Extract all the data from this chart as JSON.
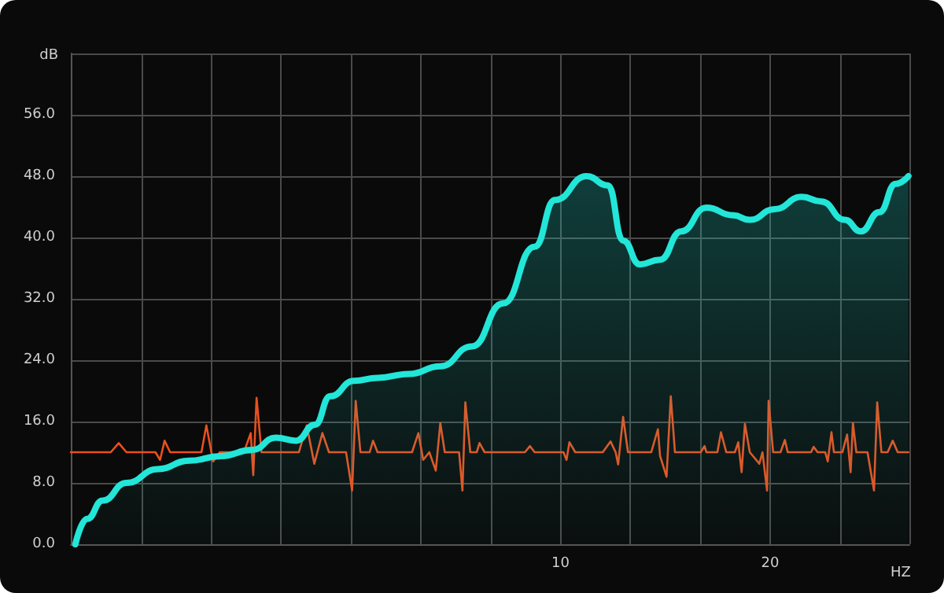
{
  "chart_data": {
    "type": "line",
    "ylabel": "dB",
    "xlabel": "HZ",
    "log": "x",
    "grid": true,
    "marker": "none",
    "line_style": "solid",
    "xlim": [
      1.98,
      31.7
    ],
    "xticks": [
      {
        "value": 1.98,
        "label": null
      },
      {
        "value": 2.5,
        "label": null
      },
      {
        "value": 3.15,
        "label": null
      },
      {
        "value": 3.97,
        "label": null
      },
      {
        "value": 5,
        "label": null
      },
      {
        "value": 6.3,
        "label": null
      },
      {
        "value": 7.94,
        "label": null
      },
      10,
      {
        "value": 12.6,
        "label": null
      },
      {
        "value": 15.9,
        "label": null
      },
      20,
      {
        "value": 25.2,
        "label": null
      },
      {
        "value": 31.7,
        "label": null
      }
    ],
    "ylim": [
      0,
      64
    ],
    "yticks": [
      {
        "value": 0,
        "label": "0.0"
      },
      {
        "value": 8,
        "label": "8.0"
      },
      {
        "value": 16,
        "label": "16.0"
      },
      {
        "value": 24,
        "label": "24.0"
      },
      {
        "value": 32,
        "label": "32.0"
      },
      {
        "value": 40,
        "label": "40.0"
      },
      {
        "value": 48,
        "label": "48.0"
      },
      {
        "value": 56,
        "label": "56.0"
      },
      {
        "value": 64,
        "label": null
      }
    ],
    "series": [
      {
        "type": "area",
        "color": "#22e6d8",
        "x": [
          2.01,
          2.09,
          2.2,
          2.38,
          2.64,
          2.93,
          3.25,
          3.61,
          3.9,
          4.17,
          4.44,
          4.67,
          5.05,
          5.46,
          6.06,
          6.72,
          7.46,
          8.27,
          9.18,
          9.82,
          10.9,
          11.7,
          12.3,
          13,
          13.9,
          14.9,
          16.2,
          17.7,
          18.7,
          20.3,
          22.2,
          23.7,
          25.6,
          27,
          28.7,
          30.3,
          31.6
        ],
        "values": [
          0,
          3.3,
          5.7,
          8,
          9.8,
          10.9,
          11.5,
          12.3,
          13.9,
          13.5,
          15.6,
          19.3,
          21.3,
          21.7,
          22.2,
          23.2,
          25.8,
          31.4,
          38.8,
          44.9,
          48,
          46.8,
          39.6,
          36.5,
          37.1,
          40.8,
          43.9,
          42.9,
          42.3,
          43.7,
          45.3,
          44.7,
          42.3,
          40.8,
          43.3,
          47,
          48
        ]
      },
      {
        "color": "#e8501e",
        "x": [
          1.98,
          2.26,
          2.32,
          2.38,
          2.62,
          2.66,
          2.7,
          2.75,
          3.05,
          3.1,
          3.17,
          3.24,
          3.51,
          3.59,
          3.62,
          3.66,
          3.72,
          4.21,
          4.32,
          4.43,
          4.55,
          4.65,
          4.92,
          5.02,
          5.08,
          5.16,
          5.32,
          5.38,
          5.46,
          6.12,
          6.25,
          6.35,
          6.48,
          6.62,
          6.72,
          6.82,
          7.15,
          7.23,
          7.3,
          7.42,
          7.58,
          7.65,
          7.78,
          8.89,
          9.04,
          9.18,
          10.1,
          10.2,
          10.3,
          10.5,
          11.5,
          11.8,
          12,
          12.1,
          12.3,
          12.5,
          13.5,
          13.8,
          13.9,
          14.2,
          14.4,
          14.6,
          15.9,
          16.1,
          16.2,
          16.8,
          17,
          17.3,
          17.8,
          18,
          18.2,
          18.4,
          18.7,
          19.3,
          19.5,
          19.8,
          19.9,
          20.2,
          20.7,
          21,
          21.2,
          22.9,
          23.1,
          23.4,
          24,
          24.2,
          24.5,
          24.7,
          25.4,
          25.8,
          26.1,
          26.3,
          26.6,
          27.6,
          28.2,
          28.5,
          28.9,
          29.5,
          30,
          30.5,
          31.6
        ],
        "values": [
          12,
          12,
          13.2,
          12,
          12,
          11,
          13.5,
          12,
          12,
          15.5,
          10.8,
          12,
          12,
          14.5,
          9,
          19.1,
          12,
          12,
          15.5,
          10.5,
          14.5,
          12,
          12,
          7,
          18.7,
          12,
          12,
          13.5,
          12,
          12,
          14.5,
          11,
          12,
          9.6,
          15.8,
          12,
          12,
          7,
          18.5,
          12,
          12,
          13.2,
          12,
          12,
          12.8,
          12,
          12,
          11,
          13.3,
          12,
          12,
          13.4,
          12,
          10.4,
          16.6,
          12,
          12,
          15,
          11.5,
          8.8,
          19.3,
          12,
          12,
          12.8,
          12,
          12,
          14.6,
          12,
          12,
          13.3,
          9.4,
          15.7,
          12,
          10.5,
          12,
          7,
          18.7,
          12,
          12,
          13.6,
          12,
          12,
          12.7,
          12,
          12,
          10.8,
          14.6,
          12,
          12,
          14.3,
          9.4,
          15.8,
          12,
          12,
          7,
          18.5,
          12,
          12,
          13.5,
          12,
          12
        ]
      }
    ]
  }
}
